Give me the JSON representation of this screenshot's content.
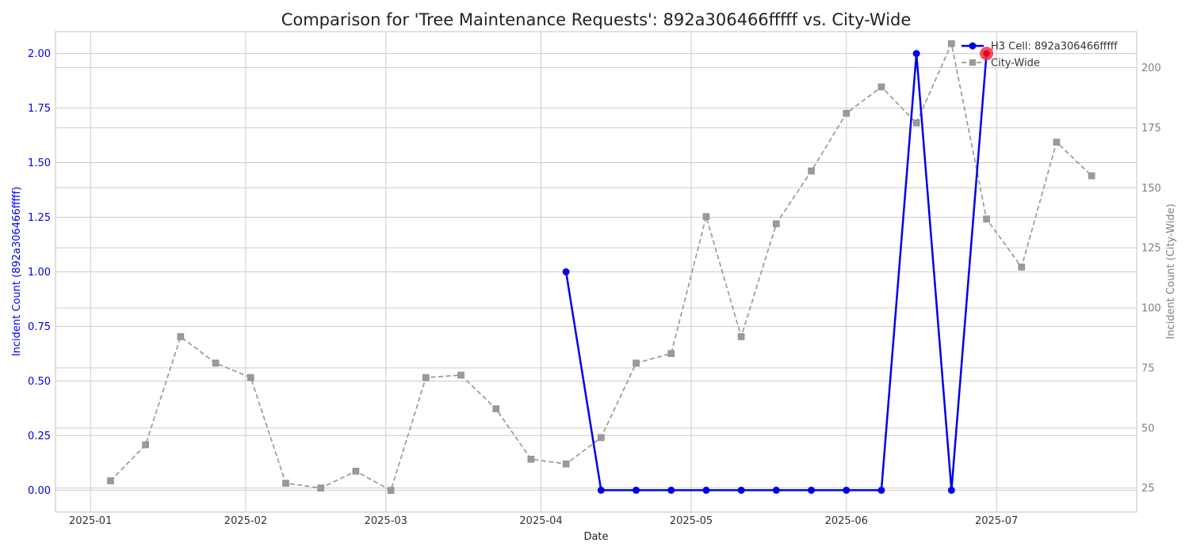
{
  "chart_data": {
    "type": "line",
    "title": "Comparison for 'Tree Maintenance Requests': 892a306466fffff vs. City-Wide",
    "xlabel": "Date",
    "ylabel_left": "Incident Count (892a306466fffff)",
    "ylabel_right": "Incident Count (City-Wide)",
    "x_ticks": [
      "2025-01",
      "2025-02",
      "2025-03",
      "2025-04",
      "2025-05",
      "2025-06",
      "2025-07"
    ],
    "y_left_ticks": [
      "0.00",
      "0.25",
      "0.50",
      "0.75",
      "1.00",
      "1.25",
      "1.50",
      "1.75",
      "2.00"
    ],
    "y_right_ticks": [
      "25",
      "50",
      "75",
      "100",
      "125",
      "150",
      "175",
      "200"
    ],
    "ylim_left": [
      -0.1,
      2.1
    ],
    "ylim_right": [
      15,
      215
    ],
    "xlim": [
      "2024-12-25",
      "2025-07-29"
    ],
    "grid": true,
    "legend_position": "top-right",
    "colors": {
      "cell": "#0000ee",
      "city": "#9a9a9a",
      "highlight": "#ff2a3a",
      "left_axis_text": "#0000ee",
      "right_axis_text": "#808080",
      "grid": "#cccccc",
      "title": "#222222"
    },
    "series": [
      {
        "name": "H3 Cell: 892a306466fffff",
        "axis": "left",
        "x": [
          "2025-04-06",
          "2025-04-13",
          "2025-04-20",
          "2025-04-27",
          "2025-05-04",
          "2025-05-11",
          "2025-05-18",
          "2025-05-25",
          "2025-06-01",
          "2025-06-08",
          "2025-06-15",
          "2025-06-22",
          "2025-06-29"
        ],
        "values": [
          1,
          0,
          0,
          0,
          0,
          0,
          0,
          0,
          0,
          0,
          2,
          0,
          2
        ]
      },
      {
        "name": "City-Wide",
        "axis": "right",
        "x": [
          "2025-01-05",
          "2025-01-12",
          "2025-01-19",
          "2025-01-26",
          "2025-02-02",
          "2025-02-09",
          "2025-02-16",
          "2025-02-23",
          "2025-03-02",
          "2025-03-09",
          "2025-03-16",
          "2025-03-23",
          "2025-03-30",
          "2025-04-06",
          "2025-04-13",
          "2025-04-20",
          "2025-04-27",
          "2025-05-04",
          "2025-05-11",
          "2025-05-18",
          "2025-05-25",
          "2025-06-01",
          "2025-06-08",
          "2025-06-15",
          "2025-06-22",
          "2025-06-29",
          "2025-07-06",
          "2025-07-13",
          "2025-07-20"
        ],
        "values": [
          28,
          43,
          88,
          77,
          71,
          27,
          25,
          32,
          24,
          71,
          72,
          58,
          37,
          35,
          46,
          77,
          81,
          138,
          88,
          135,
          157,
          181,
          192,
          177,
          210,
          137,
          117,
          169,
          155
        ]
      }
    ],
    "highlight": {
      "series": "H3 Cell: 892a306466fffff",
      "x": "2025-06-29",
      "value": 2
    }
  }
}
